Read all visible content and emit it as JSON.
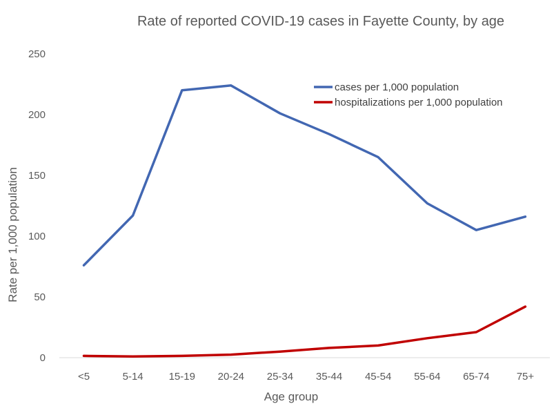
{
  "chart_data": {
    "type": "line",
    "title": "Rate of reported COVID-19 cases in Fayette County, by age",
    "xlabel": "Age group",
    "ylabel": "Rate per 1,000 population",
    "categories": [
      "<5",
      "5-14",
      "15-19",
      "20-24",
      "25-34",
      "35-44",
      "45-54",
      "55-64",
      "65-74",
      "75+"
    ],
    "ylim": [
      0,
      250
    ],
    "yticks": [
      0,
      50,
      100,
      150,
      200,
      250
    ],
    "grid": false,
    "legend_position": "top-right",
    "series": [
      {
        "name": "cases per 1,000 population",
        "color": "#4267b2",
        "values": [
          76,
          117,
          220,
          224,
          201,
          184,
          165,
          127,
          105,
          116
        ]
      },
      {
        "name": "hospitalizations per 1,000 population",
        "color": "#c00000",
        "values": [
          1.5,
          1,
          1.5,
          2.5,
          5,
          8,
          10,
          16,
          21,
          42
        ]
      }
    ]
  }
}
